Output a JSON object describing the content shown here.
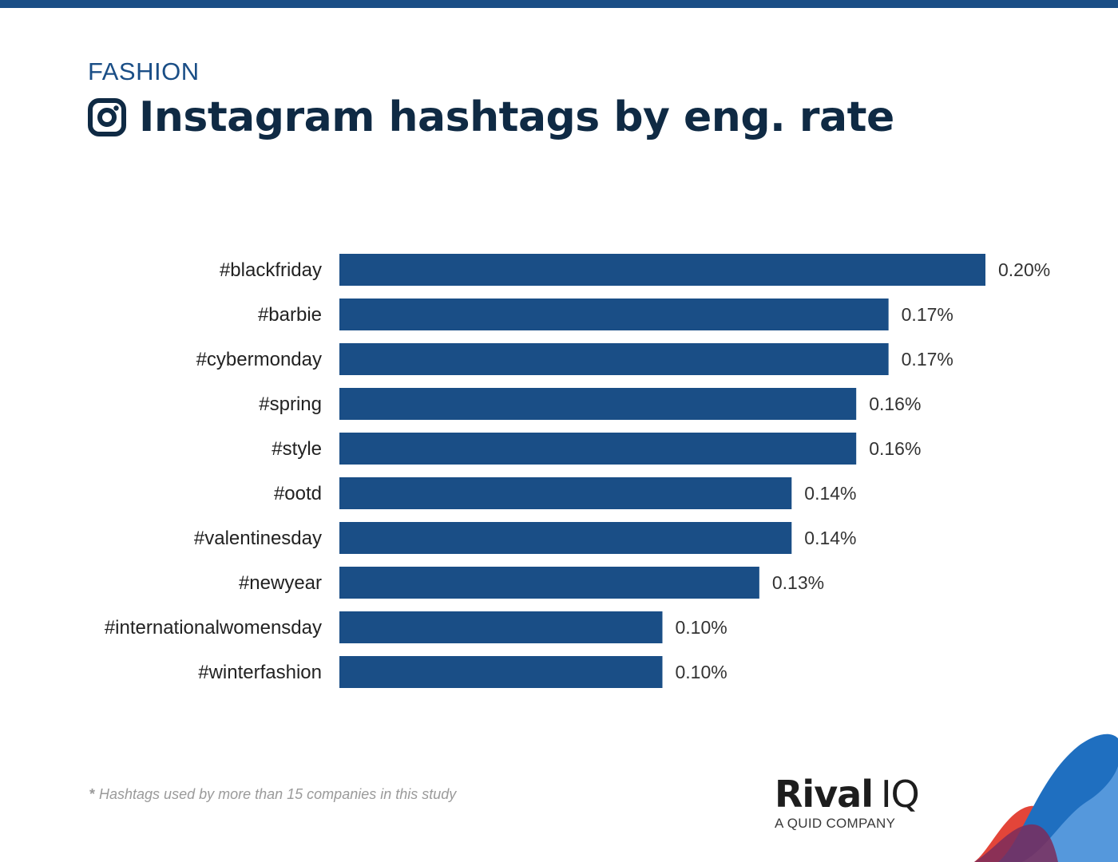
{
  "header": {
    "category": "FASHION",
    "title": "Instagram hashtags by eng. rate"
  },
  "chart_data": {
    "type": "bar",
    "orientation": "horizontal",
    "categories": [
      "#blackfriday",
      "#barbie",
      "#cybermonday",
      "#spring",
      "#style",
      "#ootd",
      "#valentinesday",
      "#newyear",
      "#internationalwomensday",
      "#winterfashion"
    ],
    "values": [
      0.2,
      0.17,
      0.17,
      0.16,
      0.16,
      0.14,
      0.14,
      0.13,
      0.1,
      0.1
    ],
    "value_labels": [
      "0.20%",
      "0.17%",
      "0.17%",
      "0.16%",
      "0.16%",
      "0.14%",
      "0.14%",
      "0.13%",
      "0.10%",
      "0.10%"
    ],
    "title": "Instagram hashtags by eng. rate",
    "xlabel": "",
    "ylabel": "",
    "grid": false,
    "legend": "none",
    "bar_color": "#1a4e86"
  },
  "footnote": {
    "star": "*",
    "text": " Hashtags used by more than 15 companies in this study"
  },
  "logo": {
    "name_bold": "Rival",
    "name_light": "IQ",
    "tagline": "A QUID COMPANY"
  },
  "colors": {
    "brand_blue": "#1a4e86",
    "title_navy": "#0f2a44",
    "accent_red": "#e23b2e",
    "accent_purple": "#7b2d5c",
    "accent_light_blue": "#5fa0e0"
  },
  "icons": {
    "title_icon": "instagram-icon"
  }
}
